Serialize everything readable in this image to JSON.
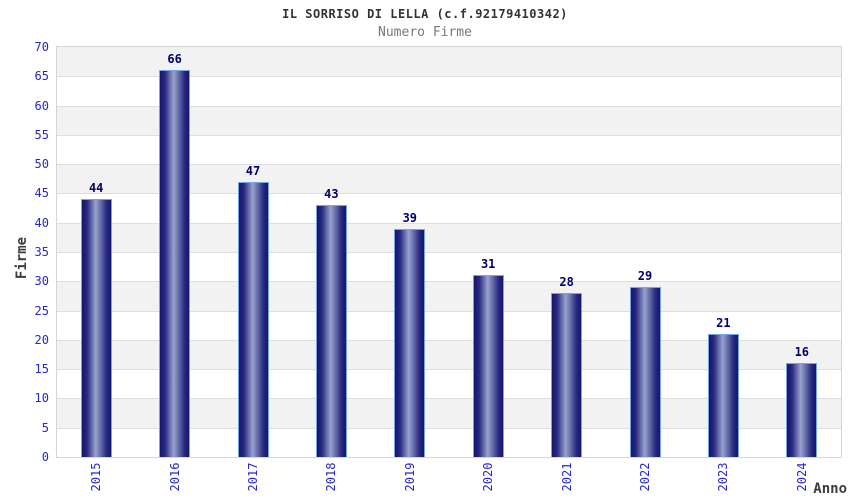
{
  "chart_data": {
    "type": "bar",
    "title": "IL SORRISO DI LELLA (c.f.92179410342)",
    "subtitle": "Numero Firme",
    "xlabel": "Anno",
    "ylabel": "Firme",
    "categories": [
      "2015",
      "2016",
      "2017",
      "2018",
      "2019",
      "2020",
      "2021",
      "2022",
      "2023",
      "2024"
    ],
    "values": [
      44,
      66,
      47,
      43,
      39,
      31,
      28,
      29,
      21,
      16
    ],
    "ylim": [
      0,
      70
    ],
    "ytick_step": 5,
    "yticks": [
      0,
      5,
      10,
      15,
      20,
      25,
      30,
      35,
      40,
      45,
      50,
      55,
      60,
      65,
      70
    ],
    "grid": "horizontal alternating bands every 5 units",
    "legend_position": "none",
    "colors": {
      "bar_dark": "#15156b",
      "bar_light": "#99a2ce",
      "bar_border": "#74a7e8",
      "band_gray": "#f2f2f2",
      "band_white": "#ffffff",
      "grid_line": "#dedede",
      "plot_border": "#d5d5d5",
      "tick_label_blue": "#2727cd",
      "value_label_navy": "#00006e",
      "title_color": "#333333",
      "subtitle_color": "#787878",
      "axis_title_color": "#3d3d3d"
    }
  }
}
